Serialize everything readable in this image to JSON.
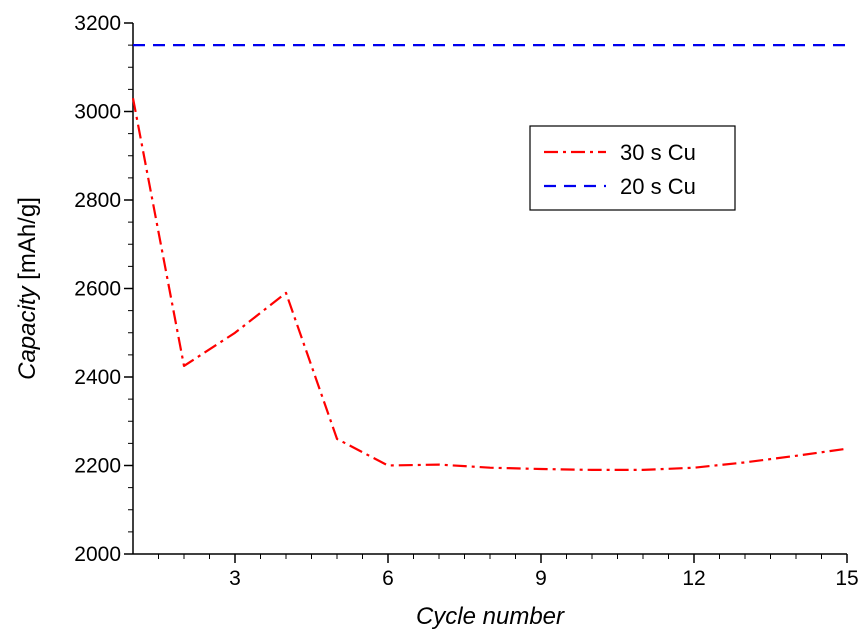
{
  "chart_data": {
    "type": "line",
    "xlabel": "Cycle number",
    "ylabel_italic": "Capacity",
    "ylabel_unit": " [mAh/g]",
    "xlim": [
      1,
      15
    ],
    "ylim": [
      2000,
      3200
    ],
    "xticks": [
      3,
      6,
      9,
      12,
      15
    ],
    "yticks": [
      2000,
      2200,
      2400,
      2600,
      2800,
      3000,
      3200
    ],
    "grid": false,
    "legend_position": "top-right",
    "series": [
      {
        "name": "30 s Cu",
        "color": "#ff0000",
        "dash": "dash-dot",
        "x": [
          1,
          2,
          3,
          4,
          5,
          6,
          7,
          8,
          9,
          10,
          11,
          12,
          13,
          14,
          15
        ],
        "y": [
          3030,
          2425,
          2500,
          2590,
          2260,
          2200,
          2202,
          2195,
          2192,
          2190,
          2190,
          2195,
          2207,
          2222,
          2238
        ]
      },
      {
        "name": "20 s Cu",
        "color": "#0000ee",
        "dash": "dash",
        "x": [
          1,
          15
        ],
        "y": [
          3150,
          3150
        ]
      }
    ]
  }
}
